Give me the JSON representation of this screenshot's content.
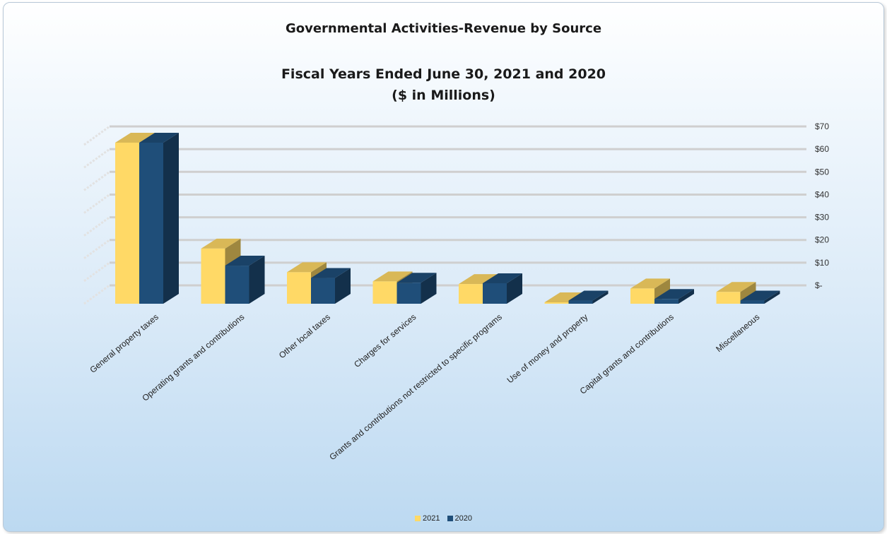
{
  "chart_data": {
    "type": "bar",
    "title": "Governmental  Activities-Revenue by Source",
    "subtitle_lines": [
      "Fiscal Years Ended June 30, 2021 and 2020",
      "($ in Millions)"
    ],
    "categories": [
      "General property taxes",
      "Operating grants and contributions",
      "Other local taxes",
      "Charges for services",
      "Grants and contributions not restricted to specific programs",
      "Use of money and property",
      "Capital grants and contributions",
      "Miscellaneous"
    ],
    "series": [
      {
        "name": "2021",
        "color": "#FFD966",
        "values": [
          61.3,
          21.0,
          12.0,
          8.5,
          7.5,
          0.5,
          5.8,
          4.5
        ]
      },
      {
        "name": "2020",
        "color": "#1F4E79",
        "values": [
          61.3,
          14.5,
          9.8,
          8.0,
          7.8,
          1.2,
          1.8,
          1.2
        ]
      }
    ],
    "y_ticks": [
      "$-",
      "$10",
      "$20",
      "$30",
      "$40",
      "$50",
      "$60",
      "$70"
    ],
    "ylim": [
      0,
      70
    ],
    "grid": true,
    "legend_position": "bottom",
    "style": "3d-column"
  }
}
